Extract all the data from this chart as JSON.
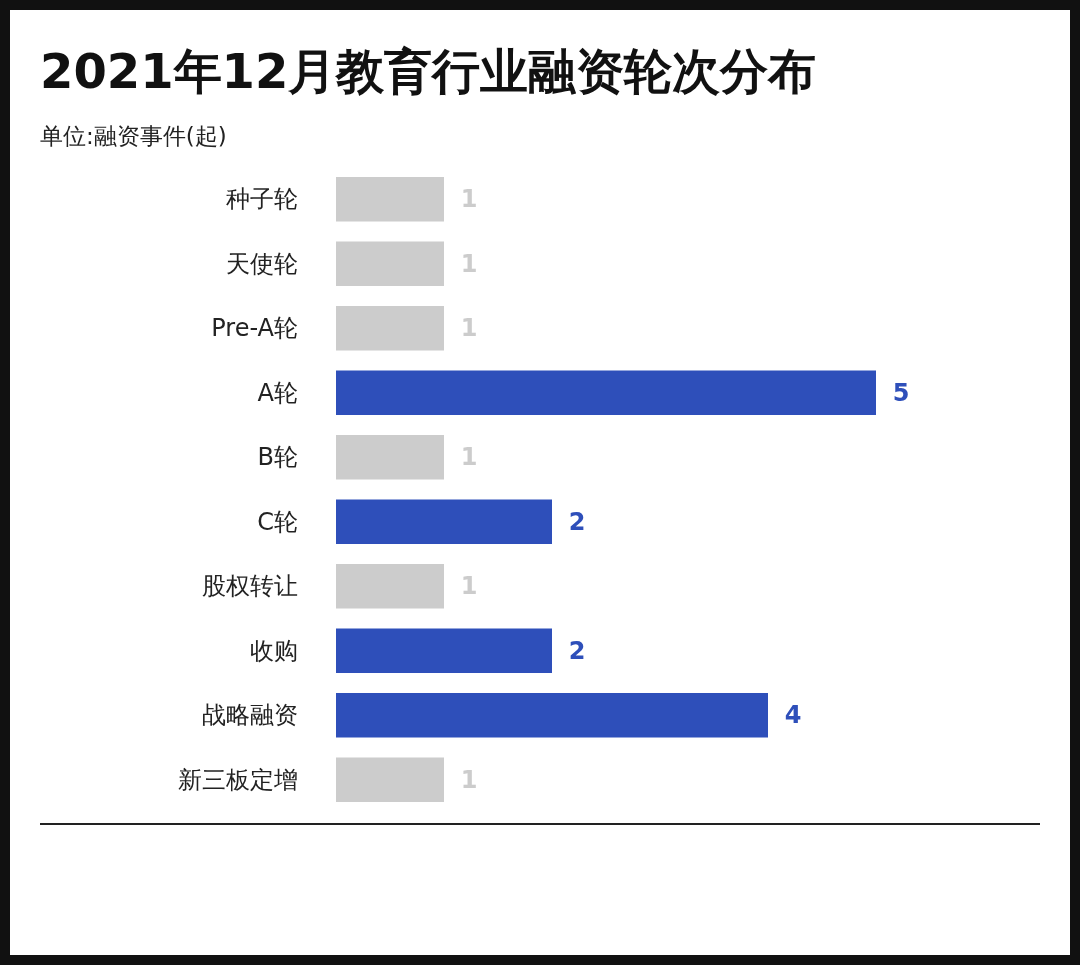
{
  "chart_data": {
    "type": "bar",
    "orientation": "horizontal",
    "title": "2021年12月教育行业融资轮次分布",
    "subtitle": "单位:融资事件(起)",
    "categories": [
      "种子轮",
      "天使轮",
      "Pre-A轮",
      "A轮",
      "B轮",
      "C轮",
      "股权转让",
      "收购",
      "战略融资",
      "新三板定增"
    ],
    "values": [
      1,
      1,
      1,
      5,
      1,
      2,
      1,
      2,
      4,
      1
    ],
    "colors": [
      "#cccccc",
      "#cccccc",
      "#cccccc",
      "#2e4fba",
      "#cccccc",
      "#2e4fba",
      "#cccccc",
      "#2e4fba",
      "#2e4fba",
      "#cccccc"
    ],
    "data_labels": true
  }
}
